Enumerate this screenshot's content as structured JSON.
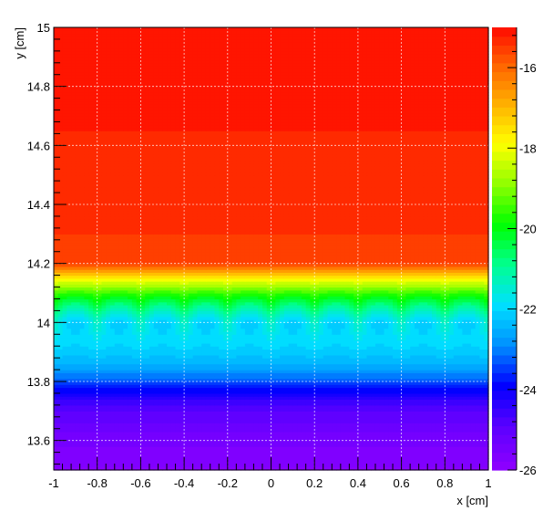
{
  "chart_data": {
    "type": "heatmap",
    "title": "",
    "xlabel": "x [cm]",
    "ylabel": "y [cm]",
    "xlim": [
      -1,
      1
    ],
    "ylim": [
      13.5,
      15
    ],
    "x_ticks": [
      "-1",
      "-0.8",
      "-0.6",
      "-0.4",
      "-0.2",
      "0",
      "0.2",
      "0.4",
      "0.6",
      "0.8",
      "1"
    ],
    "y_ticks": [
      "13.6",
      "13.8",
      "14",
      "14.2",
      "14.4",
      "14.6",
      "14.8",
      "15"
    ],
    "grid": true,
    "colorbar": {
      "range": [
        -26,
        -15
      ],
      "ticks": [
        "-16",
        "-18",
        "-20",
        "-22",
        "-24",
        "-26"
      ],
      "colors": [
        "#8b00ff",
        "#5a00ff",
        "#0000ff",
        "#0090ff",
        "#00e0ff",
        "#00ff90",
        "#00ff00",
        "#90ff00",
        "#ffff00",
        "#ffb000",
        "#ff6000",
        "#ff0000"
      ]
    },
    "profile": [
      {
        "y": 13.5,
        "z": -25.8
      },
      {
        "y": 13.6,
        "z": -25.5
      },
      {
        "y": 13.7,
        "z": -24.9
      },
      {
        "y": 13.75,
        "z": -24.3
      },
      {
        "y": 13.8,
        "z": -23.3
      },
      {
        "y": 13.85,
        "z": -22.6
      },
      {
        "y": 13.9,
        "z": -22.1
      },
      {
        "y": 14.0,
        "z": -21.3
      },
      {
        "y": 14.05,
        "z": -20.5
      },
      {
        "y": 14.1,
        "z": -19.4
      },
      {
        "y": 14.15,
        "z": -17.8
      },
      {
        "y": 14.2,
        "z": -15.5
      },
      {
        "y": 15.0,
        "z": -15.0
      }
    ],
    "ripple_period_x": 0.2
  }
}
